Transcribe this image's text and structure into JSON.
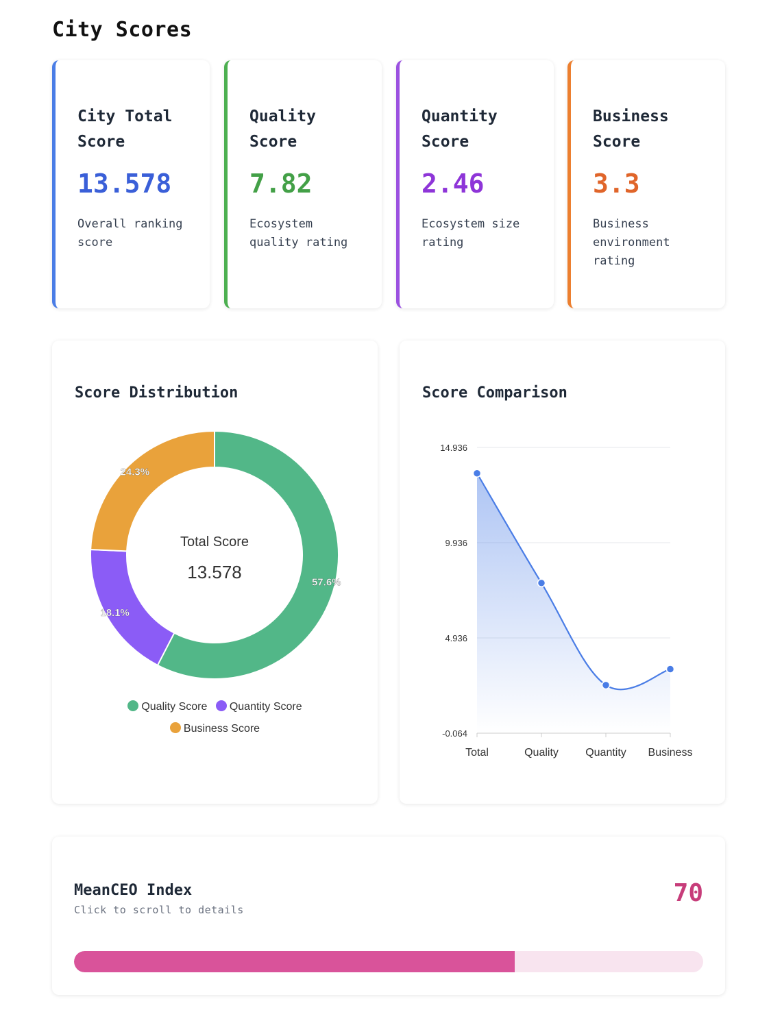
{
  "page": {
    "title": "City Scores"
  },
  "cards": [
    {
      "title_l1": "City Total",
      "title_l2": "Score",
      "value": "13.578",
      "desc": [
        "Overall ranking",
        "score"
      ],
      "accent": "#4a7de6",
      "value_color": "#3a5fd8"
    },
    {
      "title_l1": "Quality",
      "title_l2": "Score",
      "value": "7.82",
      "desc": [
        "Ecosystem",
        "quality rating"
      ],
      "accent": "#4caf50",
      "value_color": "#43a047"
    },
    {
      "title_l1": "Quantity",
      "title_l2": "Score",
      "value": "2.46",
      "desc": [
        "Ecosystem size",
        "rating"
      ],
      "accent": "#9b51e0",
      "value_color": "#8e35d8"
    },
    {
      "title_l1": "Business",
      "title_l2": "Score",
      "value": "3.3",
      "desc": [
        "Business",
        "environment",
        "rating"
      ],
      "accent": "#ec7f2f",
      "value_color": "#e0652a"
    }
  ],
  "distribution": {
    "title": "Score Distribution",
    "center_label": "Total Score",
    "center_value": "13.578",
    "legend": [
      {
        "label": "Quality Score",
        "color": "#52b788"
      },
      {
        "label": "Quantity Score",
        "color": "#8b5cf6"
      },
      {
        "label": "Business Score",
        "color": "#e9a23b"
      }
    ]
  },
  "comparison": {
    "title": "Score Comparison"
  },
  "index": {
    "title": "MeanCEO Index",
    "subtitle": "Click to scroll to details",
    "value": "70",
    "progress": 0.7
  },
  "chart_data": [
    {
      "type": "pie",
      "title": "Score Distribution",
      "categories": [
        "Quality Score",
        "Quantity Score",
        "Business Score"
      ],
      "values": [
        7.82,
        2.46,
        3.3
      ],
      "data_labels": [
        "57.6%",
        "18.1%",
        "24.3%"
      ],
      "colors": [
        "#52b788",
        "#8b5cf6",
        "#e9a23b"
      ],
      "legend": "bottom"
    },
    {
      "type": "line",
      "title": "Score Comparison",
      "categories": [
        "Total",
        "Quality",
        "Quantity",
        "Business"
      ],
      "values": [
        13.578,
        7.82,
        2.46,
        3.3
      ],
      "yticks": [
        "14.936",
        "9.936",
        "4.936",
        "-0.064"
      ],
      "ylim": [
        -0.064,
        14.936
      ],
      "grid": true,
      "color": "#4a7de6"
    }
  ]
}
